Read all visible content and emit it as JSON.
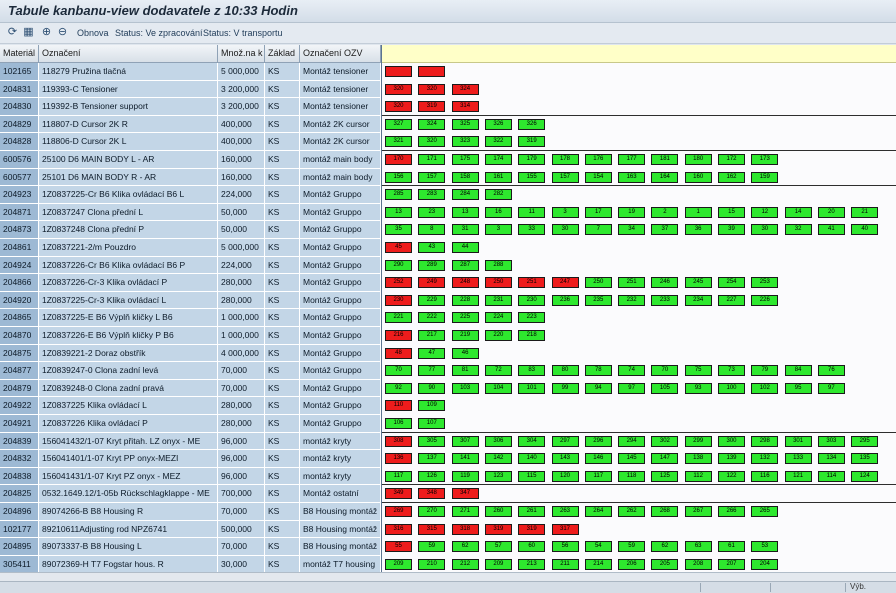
{
  "window": {
    "title": "Tabule kanbanu-view dodavatele z 10:33 Hodin"
  },
  "toolbar": {
    "refresh_label": "Obnova",
    "status_processing": "Status: Ve zpracování",
    "status_transport": "Status: V transportu"
  },
  "columns": [
    "Materiál",
    "Označení",
    "Množ.na k",
    "Základ",
    "Označení OZV"
  ],
  "rows": [
    {
      "mat": "102165",
      "desc": "118279 Pružina tlačná",
      "qty": "5 000,000",
      "base": "KS",
      "ozv": "Montáž tensioner",
      "kanbans": [
        [
          "r",
          ""
        ],
        [
          "r",
          ""
        ]
      ]
    },
    {
      "mat": "204831",
      "desc": "119393-C Tensioner",
      "qty": "3 200,000",
      "base": "KS",
      "ozv": "Montáž tensioner",
      "kanbans": [
        [
          "r",
          "320"
        ],
        [
          "r",
          "320"
        ],
        [
          "r",
          "324"
        ]
      ]
    },
    {
      "mat": "204830",
      "desc": "119392-B Tensioner support",
      "qty": "3 200,000",
      "base": "KS",
      "ozv": "Montáž tensioner",
      "kanbans": [
        [
          "r",
          "320"
        ],
        [
          "r",
          "319"
        ],
        [
          "r",
          "314"
        ]
      ]
    },
    {
      "mat": "204829",
      "desc": "118807-D Cursor 2K  R",
      "qty": "400,000",
      "base": "KS",
      "ozv": "Montáž 2K cursor",
      "kanbans": [
        [
          "g",
          "327"
        ],
        [
          "g",
          "324"
        ],
        [
          "g",
          "325"
        ],
        [
          "g",
          "326"
        ],
        [
          "g",
          "326"
        ]
      ]
    },
    {
      "mat": "204828",
      "desc": "118806-D Cursor 2K  L",
      "qty": "400,000",
      "base": "KS",
      "ozv": "Montáž 2K cursor",
      "kanbans": [
        [
          "g",
          "321"
        ],
        [
          "g",
          "320"
        ],
        [
          "g",
          "323"
        ],
        [
          "g",
          "322"
        ],
        [
          "g",
          "319"
        ]
      ]
    },
    {
      "mat": "600576",
      "desc": "25100 D6 MAIN BODY L - AR",
      "qty": "160,000",
      "base": "KS",
      "ozv": "montáž main body",
      "kanbans": [
        [
          "r",
          "170"
        ],
        [
          "g",
          "171"
        ],
        [
          "g",
          "175"
        ],
        [
          "g",
          "174"
        ],
        [
          "g",
          "179"
        ],
        [
          "g",
          "178"
        ],
        [
          "g",
          "176"
        ],
        [
          "g",
          "177"
        ],
        [
          "g",
          "181"
        ],
        [
          "g",
          "180"
        ],
        [
          "g",
          "172"
        ],
        [
          "g",
          "173"
        ]
      ]
    },
    {
      "mat": "600577",
      "desc": "25101 D6 MAIN BODY R - AR",
      "qty": "160,000",
      "base": "KS",
      "ozv": "montáž main body",
      "kanbans": [
        [
          "g",
          "156"
        ],
        [
          "g",
          "157"
        ],
        [
          "g",
          "158"
        ],
        [
          "g",
          "161"
        ],
        [
          "g",
          "155"
        ],
        [
          "g",
          "157"
        ],
        [
          "g",
          "154"
        ],
        [
          "g",
          "163"
        ],
        [
          "g",
          "164"
        ],
        [
          "g",
          "160"
        ],
        [
          "g",
          "162"
        ],
        [
          "g",
          "159"
        ]
      ]
    },
    {
      "mat": "204923",
      "desc": "1Z0837225-Cr B6 Klika ovládací B6 L",
      "qty": "224,000",
      "base": "KS",
      "ozv": "Montáž Gruppo",
      "kanbans": [
        [
          "g",
          "285"
        ],
        [
          "g",
          "283"
        ],
        [
          "g",
          "284"
        ],
        [
          "g",
          "282"
        ]
      ]
    },
    {
      "mat": "204871",
      "desc": "1Z0837247 Clona přední L",
      "qty": "50,000",
      "base": "KS",
      "ozv": "Montáž Gruppo",
      "kanbans": [
        [
          "g",
          "13"
        ],
        [
          "g",
          "23"
        ],
        [
          "g",
          "13"
        ],
        [
          "g",
          "16"
        ],
        [
          "g",
          "11"
        ],
        [
          "g",
          "3"
        ],
        [
          "g",
          "17"
        ],
        [
          "g",
          "19"
        ],
        [
          "g",
          "2"
        ],
        [
          "g",
          "1"
        ],
        [
          "g",
          "15"
        ],
        [
          "g",
          "12"
        ],
        [
          "g",
          "14"
        ],
        [
          "g",
          "20"
        ],
        [
          "g",
          "21"
        ]
      ]
    },
    {
      "mat": "204873",
      "desc": "1Z0837248 Clona přední P",
      "qty": "50,000",
      "base": "KS",
      "ozv": "Montáž Gruppo",
      "kanbans": [
        [
          "g",
          "35"
        ],
        [
          "g",
          "8"
        ],
        [
          "g",
          "31"
        ],
        [
          "g",
          "3"
        ],
        [
          "g",
          "33"
        ],
        [
          "g",
          "30"
        ],
        [
          "g",
          "7"
        ],
        [
          "g",
          "34"
        ],
        [
          "g",
          "37"
        ],
        [
          "g",
          "36"
        ],
        [
          "g",
          "39"
        ],
        [
          "g",
          "30"
        ],
        [
          "g",
          "32"
        ],
        [
          "g",
          "41"
        ],
        [
          "g",
          "40"
        ]
      ]
    },
    {
      "mat": "204861",
      "desc": "1Z0837221-2/m Pouzdro",
      "qty": "5 000,000",
      "base": "KS",
      "ozv": "Montáž Gruppo",
      "kanbans": [
        [
          "r",
          "45"
        ],
        [
          "g",
          "43"
        ],
        [
          "g",
          "44"
        ]
      ]
    },
    {
      "mat": "204924",
      "desc": "1Z0837226-Cr B6 Klika ovládací B6 P",
      "qty": "224,000",
      "base": "KS",
      "ozv": "Montáž Gruppo",
      "kanbans": [
        [
          "g",
          "290"
        ],
        [
          "g",
          "289"
        ],
        [
          "g",
          "287"
        ],
        [
          "g",
          "288"
        ]
      ]
    },
    {
      "mat": "204866",
      "desc": "1Z0837226-Cr-3 Klika ovládací P",
      "qty": "280,000",
      "base": "KS",
      "ozv": "Montáž Gruppo",
      "kanbans": [
        [
          "r",
          "252"
        ],
        [
          "r",
          "249"
        ],
        [
          "r",
          "248"
        ],
        [
          "r",
          "250"
        ],
        [
          "r",
          "251"
        ],
        [
          "r",
          "247"
        ],
        [
          "g",
          "250"
        ],
        [
          "g",
          "251"
        ],
        [
          "g",
          "246"
        ],
        [
          "g",
          "245"
        ],
        [
          "g",
          "254"
        ],
        [
          "g",
          "253"
        ]
      ]
    },
    {
      "mat": "204920",
      "desc": "1Z0837225-Cr-3 Klika ovládací L",
      "qty": "280,000",
      "base": "KS",
      "ozv": "Montáž Gruppo",
      "kanbans": [
        [
          "r",
          "230"
        ],
        [
          "g",
          "229"
        ],
        [
          "g",
          "228"
        ],
        [
          "g",
          "231"
        ],
        [
          "g",
          "230"
        ],
        [
          "g",
          "236"
        ],
        [
          "g",
          "235"
        ],
        [
          "g",
          "232"
        ],
        [
          "g",
          "233"
        ],
        [
          "g",
          "234"
        ],
        [
          "g",
          "227"
        ],
        [
          "g",
          "226"
        ]
      ]
    },
    {
      "mat": "204865",
      "desc": "1Z0837225-E B6 Výplň kličky L B6",
      "qty": "1 000,000",
      "base": "KS",
      "ozv": "Montáž Gruppo",
      "kanbans": [
        [
          "g",
          "221"
        ],
        [
          "g",
          "222"
        ],
        [
          "g",
          "225"
        ],
        [
          "g",
          "224"
        ],
        [
          "g",
          "223"
        ]
      ]
    },
    {
      "mat": "204870",
      "desc": "1Z0837226-E B6 Výplň kličky P B6",
      "qty": "1 000,000",
      "base": "KS",
      "ozv": "Montáž Gruppo",
      "kanbans": [
        [
          "r",
          "216"
        ],
        [
          "g",
          "217"
        ],
        [
          "g",
          "219"
        ],
        [
          "g",
          "220"
        ],
        [
          "g",
          "218"
        ]
      ]
    },
    {
      "mat": "204875",
      "desc": "1Z0839221-2 Doraz obstřík",
      "qty": "4 000,000",
      "base": "KS",
      "ozv": "Montáž Gruppo",
      "kanbans": [
        [
          "r",
          "48"
        ],
        [
          "g",
          "47"
        ],
        [
          "g",
          "46"
        ]
      ]
    },
    {
      "mat": "204877",
      "desc": "1Z0839247-0 Clona zadní levá",
      "qty": "70,000",
      "base": "KS",
      "ozv": "Montáž Gruppo",
      "kanbans": [
        [
          "g",
          "70"
        ],
        [
          "g",
          "77"
        ],
        [
          "g",
          "81"
        ],
        [
          "g",
          "72"
        ],
        [
          "g",
          "83"
        ],
        [
          "g",
          "80"
        ],
        [
          "g",
          "78"
        ],
        [
          "g",
          "74"
        ],
        [
          "g",
          "70"
        ],
        [
          "g",
          "75"
        ],
        [
          "g",
          "73"
        ],
        [
          "g",
          "79"
        ],
        [
          "g",
          "84"
        ],
        [
          "g",
          "76"
        ]
      ]
    },
    {
      "mat": "204879",
      "desc": "1Z0839248-0 Clona zadní pravá",
      "qty": "70,000",
      "base": "KS",
      "ozv": "Montáž Gruppo",
      "kanbans": [
        [
          "g",
          "92"
        ],
        [
          "g",
          "90"
        ],
        [
          "g",
          "103"
        ],
        [
          "g",
          "104"
        ],
        [
          "g",
          "101"
        ],
        [
          "g",
          "99"
        ],
        [
          "g",
          "94"
        ],
        [
          "g",
          "97"
        ],
        [
          "g",
          "105"
        ],
        [
          "g",
          "93"
        ],
        [
          "g",
          "100"
        ],
        [
          "g",
          "102"
        ],
        [
          "g",
          "95"
        ],
        [
          "g",
          "97"
        ]
      ]
    },
    {
      "mat": "204922",
      "desc": "1Z0837225 Klika ovládací L",
      "qty": "280,000",
      "base": "KS",
      "ozv": "Montáž Gruppo",
      "kanbans": [
        [
          "r",
          "110"
        ],
        [
          "g",
          "109"
        ]
      ]
    },
    {
      "mat": "204921",
      "desc": "1Z0837226 Klika ovládací P",
      "qty": "280,000",
      "base": "KS",
      "ozv": "Montáž Gruppo",
      "kanbans": [
        [
          "g",
          "106"
        ],
        [
          "g",
          "107"
        ]
      ]
    },
    {
      "mat": "204839",
      "desc": "156041432/1-07 Kryt přitah. LZ onyx - ME",
      "qty": "96,000",
      "base": "KS",
      "ozv": "montáž kryty",
      "kanbans": [
        [
          "r",
          "308"
        ],
        [
          "g",
          "305"
        ],
        [
          "g",
          "307"
        ],
        [
          "g",
          "306"
        ],
        [
          "g",
          "304"
        ],
        [
          "g",
          "297"
        ],
        [
          "g",
          "296"
        ],
        [
          "g",
          "294"
        ],
        [
          "g",
          "302"
        ],
        [
          "g",
          "299"
        ],
        [
          "g",
          "300"
        ],
        [
          "g",
          "298"
        ],
        [
          "g",
          "301"
        ],
        [
          "g",
          "303"
        ],
        [
          "g",
          "295"
        ]
      ]
    },
    {
      "mat": "204832",
      "desc": "156041401/1-07 Kryt PP onyx-MEZI",
      "qty": "96,000",
      "base": "KS",
      "ozv": "montáž kryty",
      "kanbans": [
        [
          "r",
          "136"
        ],
        [
          "g",
          "137"
        ],
        [
          "g",
          "141"
        ],
        [
          "g",
          "142"
        ],
        [
          "g",
          "140"
        ],
        [
          "g",
          "143"
        ],
        [
          "g",
          "146"
        ],
        [
          "g",
          "145"
        ],
        [
          "g",
          "147"
        ],
        [
          "g",
          "138"
        ],
        [
          "g",
          "139"
        ],
        [
          "g",
          "132"
        ],
        [
          "g",
          "133"
        ],
        [
          "g",
          "134"
        ],
        [
          "g",
          "135"
        ]
      ]
    },
    {
      "mat": "204838",
      "desc": "156041431/1-07 Kryt PZ onyx - MEZ",
      "qty": "96,000",
      "base": "KS",
      "ozv": "montáž kryty",
      "kanbans": [
        [
          "g",
          "117"
        ],
        [
          "g",
          "126"
        ],
        [
          "g",
          "119"
        ],
        [
          "g",
          "123"
        ],
        [
          "g",
          "115"
        ],
        [
          "g",
          "120"
        ],
        [
          "g",
          "117"
        ],
        [
          "g",
          "118"
        ],
        [
          "g",
          "125"
        ],
        [
          "g",
          "112"
        ],
        [
          "g",
          "122"
        ],
        [
          "g",
          "116"
        ],
        [
          "g",
          "121"
        ],
        [
          "g",
          "114"
        ],
        [
          "g",
          "124"
        ]
      ]
    },
    {
      "mat": "204825",
      "desc": "0532.1649.12/1-05b Rückschlagklappe - ME",
      "qty": "700,000",
      "base": "KS",
      "ozv": "Montáž ostatní",
      "kanbans": [
        [
          "r",
          "349"
        ],
        [
          "r",
          "348"
        ],
        [
          "r",
          "347"
        ]
      ]
    },
    {
      "mat": "204896",
      "desc": "89074266-B B8 Housing R",
      "qty": "70,000",
      "base": "KS",
      "ozv": "B8 Housing montáž",
      "kanbans": [
        [
          "r",
          "269"
        ],
        [
          "g",
          "270"
        ],
        [
          "g",
          "271"
        ],
        [
          "g",
          "260"
        ],
        [
          "g",
          "261"
        ],
        [
          "g",
          "263"
        ],
        [
          "g",
          "264"
        ],
        [
          "g",
          "262"
        ],
        [
          "g",
          "268"
        ],
        [
          "g",
          "267"
        ],
        [
          "g",
          "266"
        ],
        [
          "g",
          "265"
        ]
      ]
    },
    {
      "mat": "102177",
      "desc": "89210611Adjusting rod NPZ6741",
      "qty": "500,000",
      "base": "KS",
      "ozv": "B8 Housing montáž",
      "kanbans": [
        [
          "r",
          "316"
        ],
        [
          "r",
          "315"
        ],
        [
          "r",
          "318"
        ],
        [
          "r",
          "319"
        ],
        [
          "r",
          "319"
        ],
        [
          "r",
          "317"
        ]
      ]
    },
    {
      "mat": "204895",
      "desc": "89073337-B B8 Housing L",
      "qty": "70,000",
      "base": "KS",
      "ozv": "B8 Housing montáž",
      "kanbans": [
        [
          "r",
          "55"
        ],
        [
          "g",
          "59"
        ],
        [
          "g",
          "62"
        ],
        [
          "g",
          "57"
        ],
        [
          "g",
          "60"
        ],
        [
          "g",
          "56"
        ],
        [
          "g",
          "54"
        ],
        [
          "g",
          "59"
        ],
        [
          "g",
          "62"
        ],
        [
          "g",
          "63"
        ],
        [
          "g",
          "61"
        ],
        [
          "g",
          "53"
        ]
      ]
    },
    {
      "mat": "305411",
      "desc": "89072369-H T7 Fogstar hous. R",
      "qty": "30,000",
      "base": "KS",
      "ozv": "montáž T7 housing",
      "kanbans": [
        [
          "g",
          "209"
        ],
        [
          "g",
          "210"
        ],
        [
          "g",
          "212"
        ],
        [
          "g",
          "209"
        ],
        [
          "g",
          "213"
        ],
        [
          "g",
          "211"
        ],
        [
          "g",
          "214"
        ],
        [
          "g",
          "206"
        ],
        [
          "g",
          "205"
        ],
        [
          "g",
          "208"
        ],
        [
          "g",
          "207"
        ],
        [
          "g",
          "204"
        ]
      ]
    }
  ],
  "status": {
    "segment_label": "Výb."
  }
}
